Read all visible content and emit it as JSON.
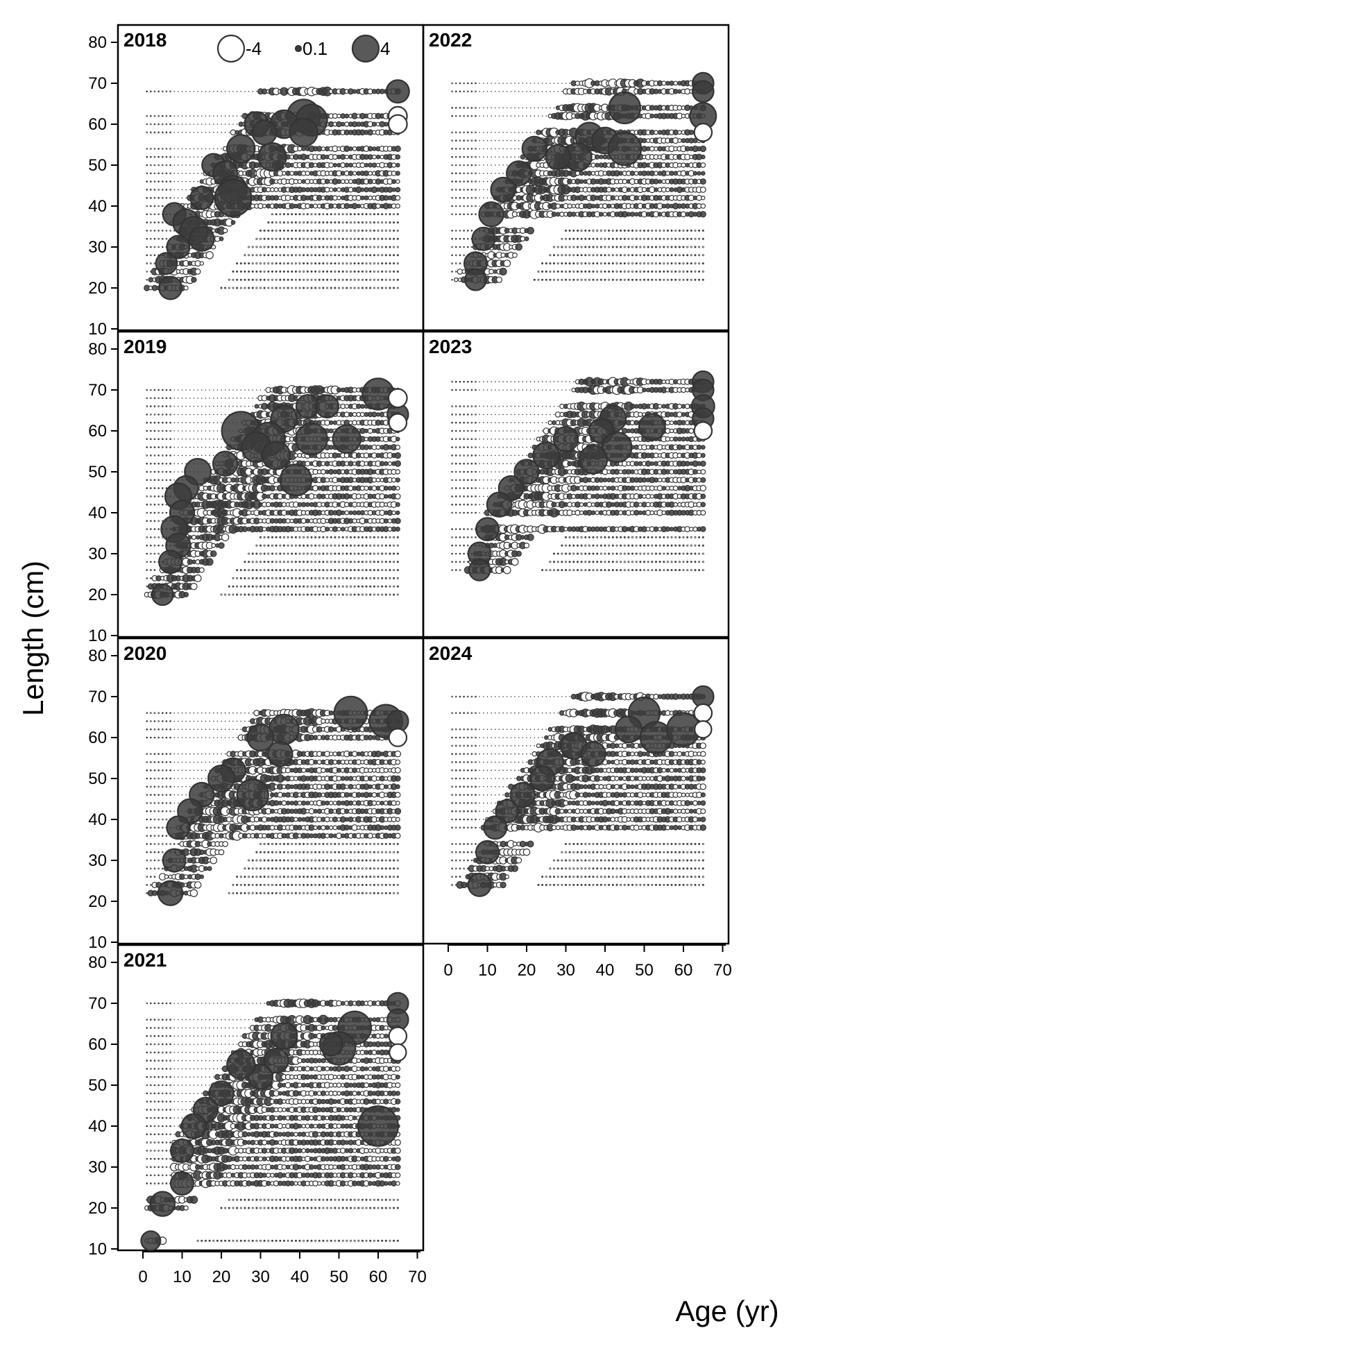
{
  "chart_data": {
    "type": "scatter",
    "subtype": "bubble-residuals-panels",
    "xlabel": "Age (yr)",
    "ylabel": "Length (cm)",
    "xlim": [
      -6,
      72
    ],
    "ylim": [
      10,
      82
    ],
    "x_ticks": [
      0,
      10,
      20,
      30,
      40,
      50,
      60,
      70
    ],
    "y_ticks": [
      10,
      20,
      30,
      40,
      50,
      60,
      70,
      80
    ],
    "legend": {
      "placement": "top (panel 2018)",
      "entries": [
        {
          "label": "-4",
          "value": -4
        },
        {
          "label": "0.1",
          "value": 0.1
        },
        {
          "label": "4",
          "value": 4
        }
      ]
    },
    "colors": {
      "positive_fill": "#3c3c3c",
      "negative_fill": "#ffffff",
      "outline": "#333333",
      "frame": "#000000"
    },
    "panels": [
      {
        "year": "2018",
        "rows": [
          20,
          22,
          24,
          26,
          28,
          30,
          32,
          34,
          36,
          38,
          40,
          42,
          44,
          46,
          48,
          50,
          52,
          54,
          58,
          60,
          62,
          68
        ],
        "age_range": [
          1,
          65
        ],
        "upper_rows_from": 40,
        "large_residuals": [
          {
            "age": 65,
            "length": 68,
            "residual": 2.0
          },
          {
            "age": 41,
            "length": 62,
            "residual": 3.2
          },
          {
            "age": 43,
            "length": 61,
            "residual": 3.0
          },
          {
            "age": 36,
            "length": 60,
            "residual": 2.6
          },
          {
            "age": 29,
            "length": 60,
            "residual": 2.2
          },
          {
            "age": 31,
            "length": 58,
            "residual": 2.2
          },
          {
            "age": 41,
            "length": 58,
            "residual": 2.6
          },
          {
            "age": 25,
            "length": 54,
            "residual": 2.6
          },
          {
            "age": 33,
            "length": 52,
            "residual": 2.6
          },
          {
            "age": 18,
            "length": 50,
            "residual": 2.0
          },
          {
            "age": 21,
            "length": 48,
            "residual": 2.2
          },
          {
            "age": 23,
            "length": 44,
            "residual": 2.6
          },
          {
            "age": 23,
            "length": 42,
            "residual": 3.6
          },
          {
            "age": 15,
            "length": 42,
            "residual": 2.0
          },
          {
            "age": 8,
            "length": 38,
            "residual": 2.0
          },
          {
            "age": 11,
            "length": 36,
            "residual": 2.4
          },
          {
            "age": 13,
            "length": 34,
            "residual": 2.6
          },
          {
            "age": 15,
            "length": 32,
            "residual": 2.2
          },
          {
            "age": 9,
            "length": 30,
            "residual": 2.0
          },
          {
            "age": 6,
            "length": 26,
            "residual": 1.8
          },
          {
            "age": 7,
            "length": 20,
            "residual": 2.0
          },
          {
            "age": 65,
            "length": 62,
            "residual": -1.5
          },
          {
            "age": 65,
            "length": 60,
            "residual": -1.5
          }
        ]
      },
      {
        "year": "2019",
        "rows": [
          20,
          22,
          24,
          26,
          28,
          30,
          32,
          34,
          36,
          38,
          40,
          42,
          44,
          46,
          48,
          50,
          52,
          54,
          56,
          58,
          60,
          62,
          64,
          66,
          68,
          70
        ],
        "age_range": [
          1,
          65
        ],
        "upper_rows_from": 36,
        "large_residuals": [
          {
            "age": 60,
            "length": 69,
            "residual": 3.0
          },
          {
            "age": 65,
            "length": 64,
            "residual": 1.8
          },
          {
            "age": 42,
            "length": 66,
            "residual": 2.0
          },
          {
            "age": 47,
            "length": 66,
            "residual": 2.0
          },
          {
            "age": 36,
            "length": 63,
            "residual": 2.4
          },
          {
            "age": 25,
            "length": 60,
            "residual": 3.8
          },
          {
            "age": 32,
            "length": 58,
            "residual": 3.2
          },
          {
            "age": 43,
            "length": 58,
            "residual": 3.0
          },
          {
            "age": 52,
            "length": 58,
            "residual": 2.6
          },
          {
            "age": 29,
            "length": 56,
            "residual": 2.8
          },
          {
            "age": 34,
            "length": 54,
            "residual": 2.6
          },
          {
            "age": 39,
            "length": 48,
            "residual": 3.0
          },
          {
            "age": 21,
            "length": 52,
            "residual": 2.2
          },
          {
            "age": 14,
            "length": 50,
            "residual": 2.4
          },
          {
            "age": 11,
            "length": 46,
            "residual": 2.2
          },
          {
            "age": 9,
            "length": 44,
            "residual": 2.4
          },
          {
            "age": 10,
            "length": 40,
            "residual": 2.2
          },
          {
            "age": 8,
            "length": 36,
            "residual": 2.4
          },
          {
            "age": 9,
            "length": 32,
            "residual": 2.2
          },
          {
            "age": 7,
            "length": 28,
            "residual": 2.0
          },
          {
            "age": 5,
            "length": 20,
            "residual": 1.8
          },
          {
            "age": 65,
            "length": 68,
            "residual": -1.5
          },
          {
            "age": 65,
            "length": 62,
            "residual": -1.4
          }
        ]
      },
      {
        "year": "2020",
        "rows": [
          22,
          24,
          26,
          28,
          30,
          32,
          34,
          36,
          38,
          40,
          42,
          44,
          46,
          48,
          50,
          52,
          54,
          56,
          60,
          62,
          64,
          66
        ],
        "age_range": [
          1,
          65
        ],
        "upper_rows_from": 36,
        "large_residuals": [
          {
            "age": 53,
            "length": 66,
            "residual": 3.2
          },
          {
            "age": 62,
            "length": 64,
            "residual": 3.2
          },
          {
            "age": 65,
            "length": 64,
            "residual": 1.8
          },
          {
            "age": 36,
            "length": 62,
            "residual": 2.8
          },
          {
            "age": 30,
            "length": 60,
            "residual": 2.4
          },
          {
            "age": 35,
            "length": 56,
            "residual": 2.2
          },
          {
            "age": 28,
            "length": 46,
            "residual": 3.0
          },
          {
            "age": 23,
            "length": 52,
            "residual": 2.2
          },
          {
            "age": 20,
            "length": 50,
            "residual": 2.4
          },
          {
            "age": 15,
            "length": 46,
            "residual": 2.2
          },
          {
            "age": 12,
            "length": 42,
            "residual": 2.2
          },
          {
            "age": 9,
            "length": 38,
            "residual": 2.0
          },
          {
            "age": 8,
            "length": 30,
            "residual": 2.0
          },
          {
            "age": 7,
            "length": 22,
            "residual": 2.2
          },
          {
            "age": 65,
            "length": 60,
            "residual": -1.4
          }
        ]
      },
      {
        "year": "2021",
        "rows": [
          12,
          20,
          22,
          26,
          28,
          30,
          32,
          34,
          36,
          38,
          40,
          42,
          44,
          46,
          48,
          50,
          52,
          54,
          56,
          58,
          60,
          62,
          64,
          66,
          70
        ],
        "age_range": [
          1,
          65
        ],
        "upper_rows_from": 26,
        "large_residuals": [
          {
            "age": 60,
            "length": 40,
            "residual": 4.0
          },
          {
            "age": 65,
            "length": 70,
            "residual": 1.8
          },
          {
            "age": 65,
            "length": 66,
            "residual": 1.8
          },
          {
            "age": 54,
            "length": 64,
            "residual": 3.2
          },
          {
            "age": 50,
            "length": 59,
            "residual": 3.2
          },
          {
            "age": 48,
            "length": 60,
            "residual": 2.0
          },
          {
            "age": 36,
            "length": 62,
            "residual": 2.4
          },
          {
            "age": 34,
            "length": 56,
            "residual": 2.2
          },
          {
            "age": 30,
            "length": 52,
            "residual": 2.2
          },
          {
            "age": 25,
            "length": 55,
            "residual": 2.6
          },
          {
            "age": 20,
            "length": 48,
            "residual": 2.2
          },
          {
            "age": 16,
            "length": 44,
            "residual": 2.2
          },
          {
            "age": 13,
            "length": 40,
            "residual": 2.2
          },
          {
            "age": 10,
            "length": 34,
            "residual": 2.0
          },
          {
            "age": 10,
            "length": 26,
            "residual": 2.0
          },
          {
            "age": 5,
            "length": 21,
            "residual": 2.2
          },
          {
            "age": 2,
            "length": 12,
            "residual": 1.6
          },
          {
            "age": 65,
            "length": 62,
            "residual": -1.4
          },
          {
            "age": 65,
            "length": 58,
            "residual": -1.3
          }
        ]
      },
      {
        "year": "2022",
        "rows": [
          22,
          24,
          26,
          28,
          30,
          32,
          34,
          38,
          40,
          42,
          44,
          46,
          48,
          50,
          52,
          54,
          56,
          58,
          62,
          64,
          68,
          70
        ],
        "age_range": [
          1,
          65
        ],
        "upper_rows_from": 36,
        "large_residuals": [
          {
            "age": 65,
            "length": 70,
            "residual": 1.8
          },
          {
            "age": 65,
            "length": 68,
            "residual": 1.8
          },
          {
            "age": 45,
            "length": 64,
            "residual": 3.0
          },
          {
            "age": 65,
            "length": 62,
            "residual": 2.4
          },
          {
            "age": 36,
            "length": 57,
            "residual": 2.6
          },
          {
            "age": 40,
            "length": 56,
            "residual": 2.4
          },
          {
            "age": 45,
            "length": 54,
            "residual": 3.2
          },
          {
            "age": 33,
            "length": 52,
            "residual": 2.6
          },
          {
            "age": 28,
            "length": 52,
            "residual": 2.2
          },
          {
            "age": 22,
            "length": 54,
            "residual": 2.2
          },
          {
            "age": 18,
            "length": 48,
            "residual": 2.2
          },
          {
            "age": 14,
            "length": 44,
            "residual": 2.2
          },
          {
            "age": 11,
            "length": 38,
            "residual": 2.2
          },
          {
            "age": 9,
            "length": 32,
            "residual": 2.0
          },
          {
            "age": 7,
            "length": 26,
            "residual": 2.0
          },
          {
            "age": 7,
            "length": 22,
            "residual": 1.8
          },
          {
            "age": 65,
            "length": 58,
            "residual": -1.4
          }
        ]
      },
      {
        "year": "2023",
        "rows": [
          26,
          28,
          30,
          32,
          34,
          36,
          40,
          42,
          44,
          46,
          48,
          50,
          52,
          54,
          56,
          58,
          60,
          62,
          64,
          66,
          70,
          72
        ],
        "age_range": [
          1,
          65
        ],
        "upper_rows_from": 36,
        "large_residuals": [
          {
            "age": 65,
            "length": 72,
            "residual": 1.8
          },
          {
            "age": 65,
            "length": 70,
            "residual": 1.8
          },
          {
            "age": 65,
            "length": 66,
            "residual": 2.0
          },
          {
            "age": 65,
            "length": 63,
            "residual": 1.8
          },
          {
            "age": 52,
            "length": 61,
            "residual": 2.4
          },
          {
            "age": 42,
            "length": 63,
            "residual": 2.4
          },
          {
            "age": 39,
            "length": 60,
            "residual": 2.2
          },
          {
            "age": 43,
            "length": 56,
            "residual": 2.8
          },
          {
            "age": 37,
            "length": 53,
            "residual": 2.6
          },
          {
            "age": 30,
            "length": 58,
            "residual": 2.2
          },
          {
            "age": 25,
            "length": 54,
            "residual": 2.4
          },
          {
            "age": 20,
            "length": 50,
            "residual": 2.2
          },
          {
            "age": 16,
            "length": 46,
            "residual": 2.2
          },
          {
            "age": 13,
            "length": 42,
            "residual": 2.2
          },
          {
            "age": 10,
            "length": 36,
            "residual": 2.0
          },
          {
            "age": 8,
            "length": 30,
            "residual": 2.0
          },
          {
            "age": 8,
            "length": 26,
            "residual": 1.8
          },
          {
            "age": 65,
            "length": 60,
            "residual": -1.4
          }
        ]
      },
      {
        "year": "2024",
        "rows": [
          24,
          26,
          28,
          30,
          32,
          34,
          38,
          40,
          42,
          44,
          46,
          48,
          50,
          52,
          54,
          56,
          58,
          60,
          62,
          66,
          70
        ],
        "age_range": [
          1,
          65
        ],
        "upper_rows_from": 36,
        "large_residuals": [
          {
            "age": 65,
            "length": 70,
            "residual": 1.8
          },
          {
            "age": 50,
            "length": 66,
            "residual": 3.0
          },
          {
            "age": 46,
            "length": 62,
            "residual": 2.4
          },
          {
            "age": 53,
            "length": 60,
            "residual": 3.0
          },
          {
            "age": 60,
            "length": 62,
            "residual": 3.2
          },
          {
            "age": 32,
            "length": 58,
            "residual": 2.4
          },
          {
            "age": 37,
            "length": 56,
            "residual": 2.2
          },
          {
            "age": 26,
            "length": 54,
            "residual": 2.4
          },
          {
            "age": 24,
            "length": 50,
            "residual": 2.2
          },
          {
            "age": 19,
            "length": 46,
            "residual": 2.2
          },
          {
            "age": 15,
            "length": 42,
            "residual": 2.0
          },
          {
            "age": 12,
            "length": 38,
            "residual": 2.0
          },
          {
            "age": 10,
            "length": 32,
            "residual": 2.0
          },
          {
            "age": 8,
            "length": 24,
            "residual": 2.0
          },
          {
            "age": 65,
            "length": 66,
            "residual": -1.4
          },
          {
            "age": 65,
            "length": 62,
            "residual": -1.3
          }
        ]
      }
    ]
  }
}
